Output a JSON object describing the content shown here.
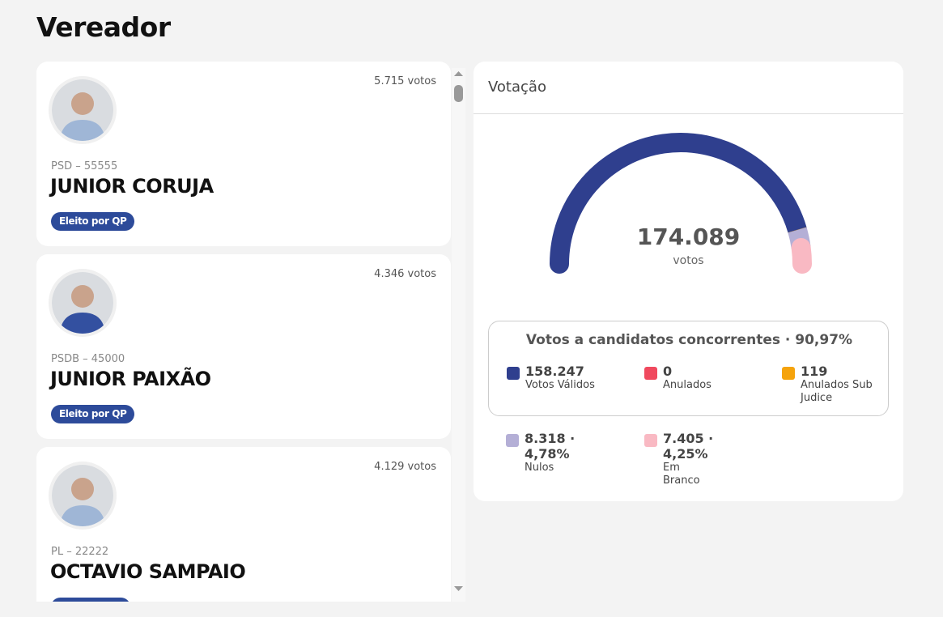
{
  "title": "Vereador",
  "candidates": [
    {
      "votes": "5.715 votos",
      "party": "PSD – 55555",
      "name": "JUNIOR CORUJA",
      "status": "Eleito por QP"
    },
    {
      "votes": "4.346 votos",
      "party": "PSDB – 45000",
      "name": "JUNIOR PAIXÃO",
      "status": "Eleito por QP"
    },
    {
      "votes": "4.129 votos",
      "party": "PL – 22222",
      "name": "OCTAVIO SAMPAIO"
    }
  ],
  "voting": {
    "title": "Votação",
    "total": "174.089",
    "total_label": "votos",
    "summary": {
      "title": "Votos a candidatos concorrentes · 90,97%",
      "items": [
        {
          "value": "158.247",
          "label": "Votos Válidos",
          "color": "#2f3f8e"
        },
        {
          "value": "0",
          "label": "Anulados",
          "color": "#f0495e"
        },
        {
          "value": "119",
          "label": "Anulados Sub Judice",
          "color": "#f5a30c"
        }
      ]
    },
    "others": [
      {
        "value": "8.318 · 4,78%",
        "label": "Nulos",
        "color": "#b4afd6"
      },
      {
        "value": "7.405 · 4,25%",
        "label": "Em Branco",
        "color": "#f9b9c3"
      }
    ]
  }
}
